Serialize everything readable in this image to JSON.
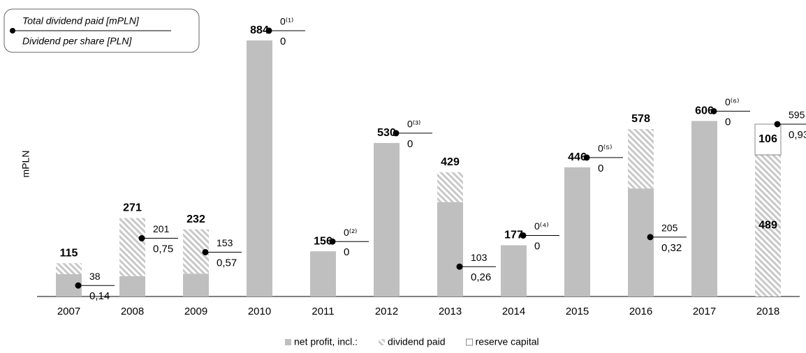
{
  "chart_data": {
    "type": "stacked_bar",
    "y_label": "mPLN",
    "legend_box": [
      "Total dividend paid [mPLN]",
      "Dividend per share [PLN]"
    ],
    "categories": [
      "2007",
      "2008",
      "2009",
      "2010",
      "2011",
      "2012",
      "2013",
      "2014",
      "2015",
      "2016",
      "2017",
      "2018"
    ],
    "series": [
      {
        "name": "net profit, incl.:",
        "color": "#bfbfbf",
        "pattern": "solid",
        "values": [
          77,
          70,
          79,
          884,
          156,
          530,
          326,
          177,
          446,
          373,
          606,
          0
        ]
      },
      {
        "name": "dividend paid",
        "color": "#bfbfbf",
        "pattern": "hatch",
        "values": [
          38,
          201,
          153,
          0,
          0,
          0,
          103,
          0,
          0,
          205,
          0,
          489
        ]
      },
      {
        "name": "reserve capital",
        "color": "#ffffff",
        "pattern": "outline",
        "values": [
          0,
          0,
          0,
          0,
          0,
          0,
          0,
          0,
          0,
          0,
          0,
          106
        ]
      }
    ],
    "totals": [
      115,
      271,
      232,
      884,
      156,
      530,
      429,
      177,
      446,
      578,
      606,
      null
    ],
    "dividends": {
      "values": [
        38,
        201,
        153,
        0,
        0,
        0,
        103,
        0,
        0,
        205,
        0,
        595
      ],
      "value_labels": [
        "38",
        "201",
        "153",
        "0⁽¹⁾",
        "0⁽²⁾",
        "0⁽³⁾",
        "103",
        "0⁽⁴⁾",
        "0⁽⁵⁾",
        "205",
        "0⁽⁶⁾",
        "595"
      ]
    },
    "per_share": [
      "0,14",
      "0,75",
      "0,57",
      "0",
      "0",
      "0",
      "0,26",
      "0",
      "0",
      "0,32",
      "0",
      "0,93"
    ],
    "ylim": [
      0,
      920
    ]
  }
}
